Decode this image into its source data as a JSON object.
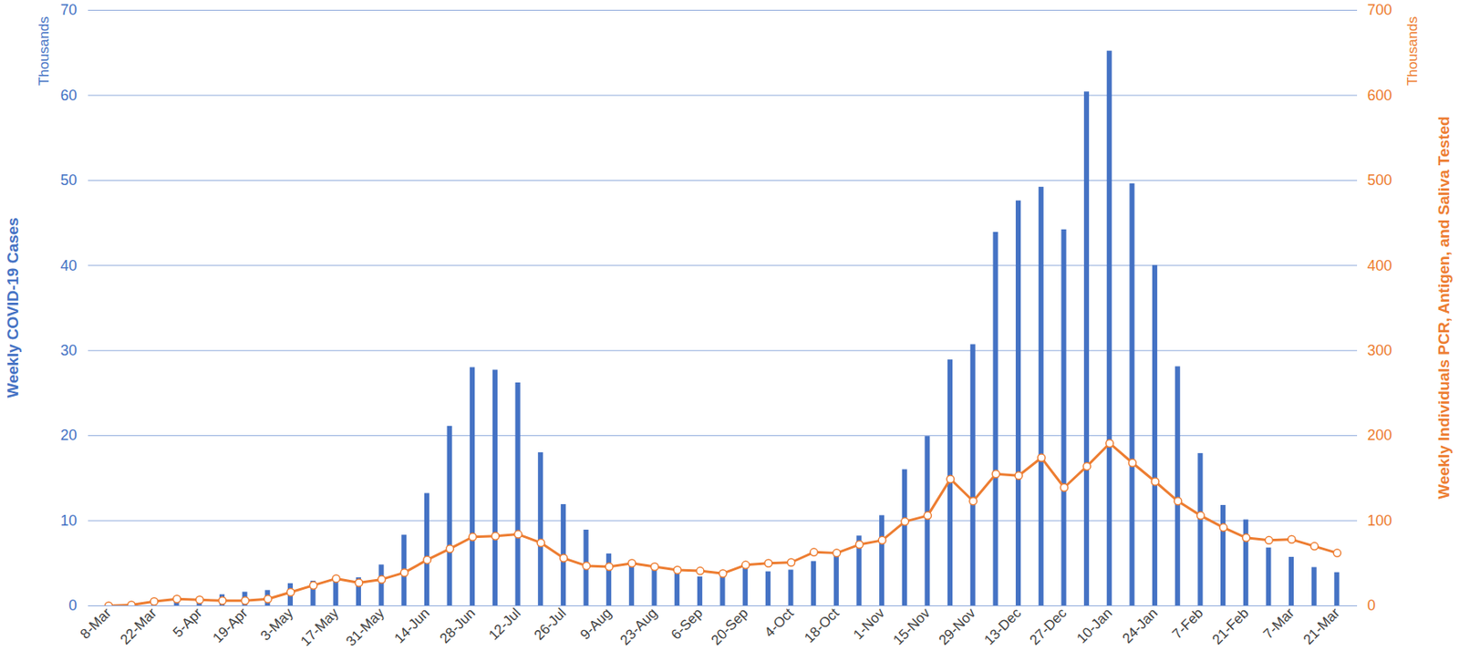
{
  "chart_data": {
    "type": "bar",
    "categories": [
      "8-Mar",
      null,
      "22-Mar",
      null,
      "5-Apr",
      null,
      "19-Apr",
      null,
      "3-May",
      null,
      "17-May",
      null,
      "31-May",
      null,
      "14-Jun",
      null,
      "28-Jun",
      null,
      "12-Jul",
      null,
      "26-Jul",
      null,
      "9-Aug",
      null,
      "23-Aug",
      null,
      "6-Sep",
      null,
      "20-Sep",
      null,
      "4-Oct",
      null,
      "18-Oct",
      null,
      "1-Nov",
      null,
      "15-Nov",
      null,
      "29-Nov",
      null,
      "13-Dec",
      null,
      "27-Dec",
      null,
      "10-Jan",
      null,
      "24-Jan",
      null,
      "7-Feb",
      null,
      "21-Feb",
      null,
      "7-Mar",
      null,
      "21-Mar"
    ],
    "series": [
      {
        "name": "Weekly COVID-19 Cases",
        "type": "bar",
        "color": "#4472c4",
        "values": [
          0,
          0.1,
          0.4,
          0.6,
          0.9,
          1.3,
          1.6,
          1.8,
          2.6,
          2.9,
          3.1,
          3.3,
          4.8,
          8.3,
          13.2,
          21.1,
          28.0,
          27.7,
          26.2,
          18.0,
          11.9,
          8.9,
          6.1,
          5.0,
          4.6,
          4.0,
          3.4,
          3.6,
          4.8,
          4.0,
          4.2,
          5.2,
          6.0,
          8.2,
          10.6,
          16.0,
          19.9,
          28.9,
          30.7,
          43.9,
          47.6,
          49.2,
          44.2,
          60.4,
          65.2,
          49.6,
          40.0,
          28.1,
          17.9,
          11.8,
          10.1,
          6.8,
          5.7,
          4.5,
          3.9
        ]
      },
      {
        "name": "Weekly Individuals PCR, Antigen, and Saliva Tested",
        "type": "line",
        "marker": "circle",
        "axis": "y2",
        "color": "#ed7d31",
        "values": [
          0,
          1,
          5,
          8,
          7,
          6,
          6,
          8,
          16,
          24,
          32,
          27,
          31,
          39,
          54,
          67,
          81,
          82,
          84,
          74,
          56,
          47,
          46,
          50,
          46,
          42,
          41,
          38,
          48,
          50,
          51,
          63,
          62,
          72,
          77,
          99,
          106,
          149,
          123,
          155,
          153,
          174,
          139,
          164,
          191,
          168,
          146,
          123,
          106,
          92,
          80,
          77,
          78,
          70,
          62
        ]
      }
    ],
    "y_unit_label": "Thousands",
    "y2_unit_label": "Thousands",
    "ylim": [
      0,
      70
    ],
    "yticks": [
      0,
      10,
      20,
      30,
      40,
      50,
      60,
      70
    ],
    "y2lim": [
      0,
      700
    ],
    "y2ticks": [
      0,
      100,
      200,
      300,
      400,
      500,
      600,
      700
    ],
    "grid": true
  }
}
